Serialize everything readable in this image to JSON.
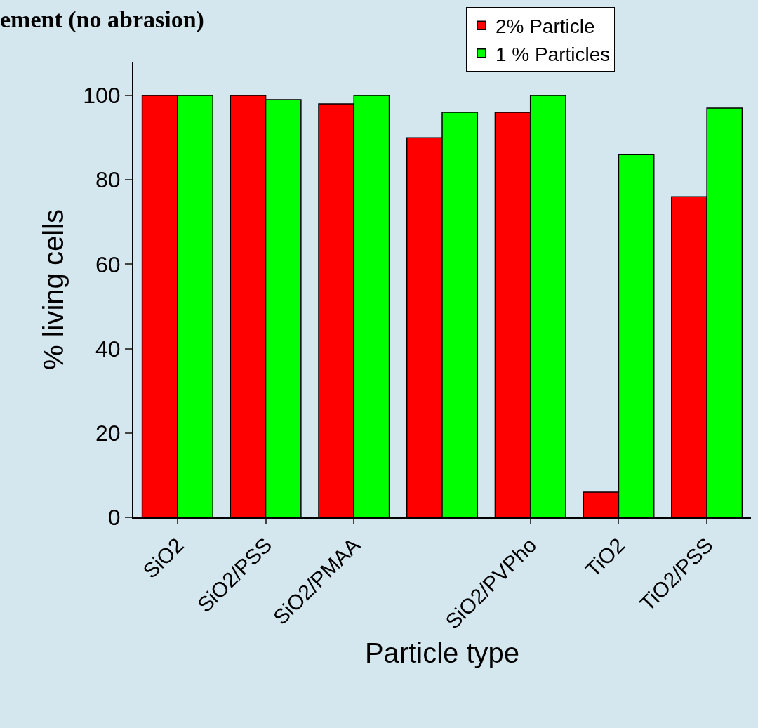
{
  "chart_data": {
    "type": "bar",
    "title": "ement (no abrasion)",
    "xlabel": "Particle type",
    "ylabel": "% living cells",
    "categories": [
      "SiO2",
      "SiO2/PSS",
      "SiO2/PMAA",
      null,
      "SiO2/PVPho",
      "TiO2",
      "TiO2/PSS"
    ],
    "series": [
      {
        "name": "2% Particle",
        "color": "#ff0000",
        "values": [
          100,
          100,
          98,
          90,
          96,
          6,
          76
        ]
      },
      {
        "name": "1 % Particles",
        "color": "#00ff00",
        "values": [
          100,
          99,
          100,
          96,
          100,
          86,
          97
        ]
      }
    ],
    "ylim": [
      0,
      108
    ],
    "yticks": [
      0,
      20,
      40,
      60,
      80,
      100
    ],
    "grid": false,
    "legend": "top right"
  }
}
